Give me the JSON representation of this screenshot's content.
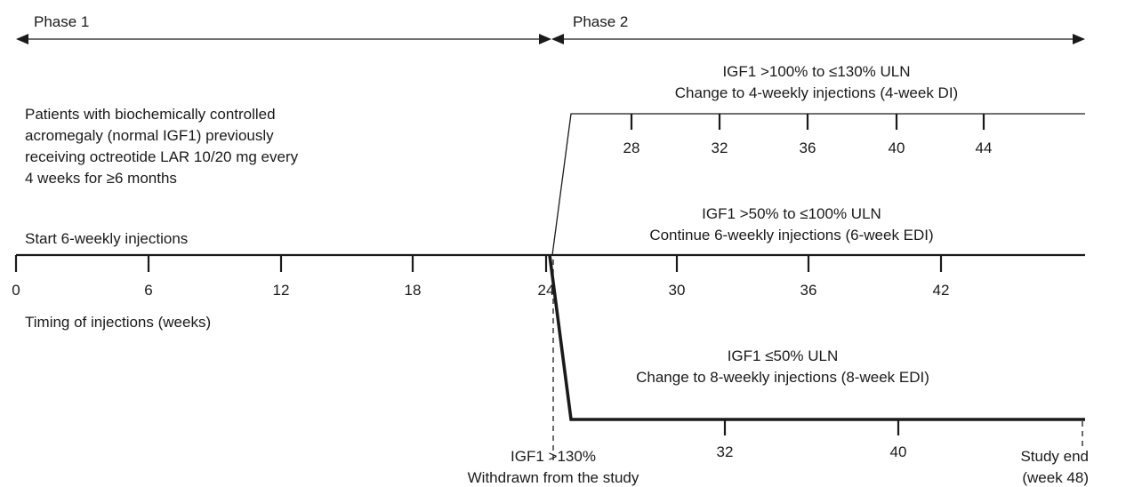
{
  "phase1_label": "Phase 1",
  "phase2_label": "Phase 2",
  "patients_text": [
    "Patients with biochemically controlled",
    "acromegaly (normal IGF1) previously",
    "receiving octreotide LAR 10/20 mg every",
    "4 weeks for ≥6 months"
  ],
  "start_label": "Start 6-weekly injections",
  "timing_label": "Timing of injections (weeks)",
  "main_ticks": [
    "0",
    "6",
    "12",
    "18",
    "24",
    "30",
    "36",
    "42"
  ],
  "branch_4week": {
    "line1": "IGF1 >100% to ≤130% ULN",
    "line2": "Change to 4-weekly injections (4-week DI)",
    "ticks": [
      "28",
      "32",
      "36",
      "40",
      "44"
    ]
  },
  "branch_6week": {
    "line1": "IGF1 >50% to ≤100% ULN",
    "line2": "Continue 6-weekly injections (6-week EDI)"
  },
  "branch_8week": {
    "line1": "IGF1 ≤50% ULN",
    "line2": "Change to 8-weekly injections (8-week EDI)",
    "ticks": [
      "32",
      "40"
    ]
  },
  "withdrawn": {
    "line1": "IGF1 >130%",
    "line2": "Withdrawn from the study"
  },
  "study_end": {
    "line1": "Study end",
    "line2": "(week 48)"
  }
}
